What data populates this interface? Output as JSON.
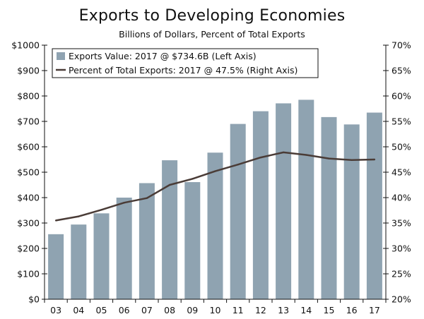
{
  "chart_data": {
    "type": "bar",
    "title": "Exports to Developing Economies",
    "subtitle": "Billions of Dollars, Percent of Total Exports",
    "categories": [
      "03",
      "04",
      "05",
      "06",
      "07",
      "08",
      "09",
      "10",
      "11",
      "12",
      "13",
      "14",
      "15",
      "16",
      "17"
    ],
    "series": [
      {
        "name": "Exports Value: 2017 @ $734.6B (Left Axis)",
        "kind": "bar",
        "axis": "left",
        "values": [
          256,
          294,
          338,
          400,
          457,
          547,
          461,
          577,
          690,
          740,
          771,
          785,
          717,
          688,
          734.6
        ]
      },
      {
        "name": "Percent of Total Exports: 2017 @ 47.5% (Right Axis)",
        "kind": "line",
        "axis": "right",
        "values": [
          35.5,
          36.3,
          37.6,
          39.0,
          39.9,
          42.5,
          43.7,
          45.2,
          46.5,
          47.9,
          48.9,
          48.4,
          47.7,
          47.4,
          47.5
        ]
      }
    ],
    "left_axis": {
      "ylim": [
        0,
        1000
      ],
      "ticks": [
        "$0",
        "$100",
        "$200",
        "$300",
        "$400",
        "$500",
        "$600",
        "$700",
        "$800",
        "$900",
        "$1000"
      ]
    },
    "right_axis": {
      "ylim": [
        20,
        70
      ],
      "ticks": [
        "20%",
        "25%",
        "30%",
        "35%",
        "40%",
        "45%",
        "50%",
        "55%",
        "60%",
        "65%",
        "70%"
      ]
    },
    "legend_position": "top-left",
    "grid": false
  },
  "colors": {
    "bar": "#8fa3b1",
    "line": "#4a3c37",
    "axis": "#111111"
  }
}
